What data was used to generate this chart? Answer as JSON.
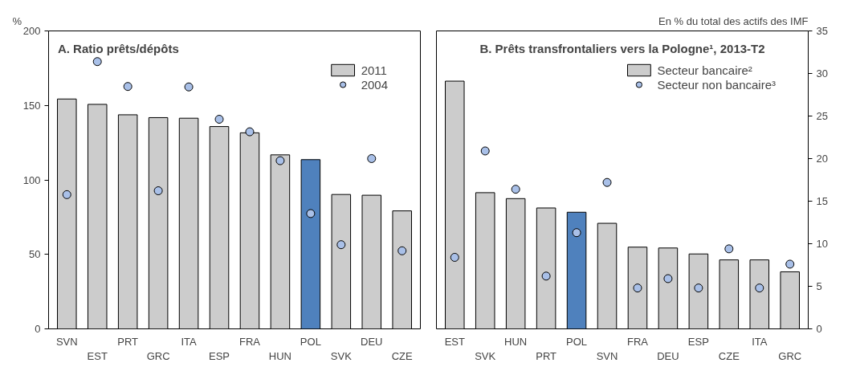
{
  "chart_data": [
    {
      "type": "bar",
      "title": "A. Ratio prêts/dépôts",
      "ylabel": "%",
      "categories": [
        "SVN",
        "EST",
        "PRT",
        "GRC",
        "ITA",
        "ESP",
        "FRA",
        "HUN",
        "POL",
        "SVK",
        "DEU",
        "CZE"
      ],
      "series": [
        {
          "name": "2011",
          "color": "#cccccc",
          "colors": [
            "#cccccc",
            "#cccccc",
            "#cccccc",
            "#cccccc",
            "#cccccc",
            "#cccccc",
            "#cccccc",
            "#cccccc",
            "#4f81bd",
            "#cccccc",
            "#cccccc",
            "#cccccc"
          ],
          "values": [
            154.3,
            150.7,
            143.7,
            141.8,
            141.4,
            135.8,
            131.6,
            116.8,
            113.6,
            90.2,
            89.7,
            79.2
          ]
        },
        {
          "name": "2004",
          "type": "scatter",
          "color": "#a9c0e8",
          "values": [
            90.1,
            179.4,
            162.7,
            92.7,
            162.4,
            140.7,
            132.3,
            112.9,
            77.4,
            56.5,
            114.3,
            52.4
          ]
        }
      ],
      "ylim": [
        0,
        200
      ],
      "yticks": [
        0,
        50,
        100,
        150,
        200
      ],
      "grid": false,
      "legend": "top right",
      "marker": "circle"
    },
    {
      "type": "bar",
      "title": "B. Prêts transfrontaliers vers la Pologne¹, 2013-T2",
      "y2label": "En % du total des actifs des IMF",
      "categories": [
        "EST",
        "SVK",
        "HUN",
        "PRT",
        "POL",
        "SVN",
        "FRA",
        "DEU",
        "ESP",
        "CZE",
        "ITA",
        "GRC"
      ],
      "series": [
        {
          "name": "Secteur bancaire²",
          "axis": "y2",
          "color": "#cccccc",
          "colors": [
            "#cccccc",
            "#cccccc",
            "#cccccc",
            "#cccccc",
            "#4f81bd",
            "#cccccc",
            "#cccccc",
            "#cccccc",
            "#cccccc",
            "#cccccc",
            "#cccccc",
            "#cccccc"
          ],
          "values": [
            29.1,
            16.0,
            15.3,
            14.2,
            13.7,
            12.4,
            9.6,
            9.5,
            8.8,
            8.1,
            8.1,
            6.7
          ]
        },
        {
          "name": "Secteur non bancaire³",
          "type": "scatter",
          "axis": "y2",
          "color": "#a9c0e8",
          "values": [
            8.4,
            20.9,
            16.4,
            6.2,
            11.3,
            17.2,
            4.8,
            5.9,
            4.8,
            9.4,
            4.8,
            7.6
          ]
        }
      ],
      "y2lim": [
        0,
        35
      ],
      "y2ticks": [
        0,
        5,
        10,
        15,
        20,
        25,
        30,
        35
      ],
      "grid": false,
      "legend": "top right",
      "marker": "circle"
    }
  ]
}
